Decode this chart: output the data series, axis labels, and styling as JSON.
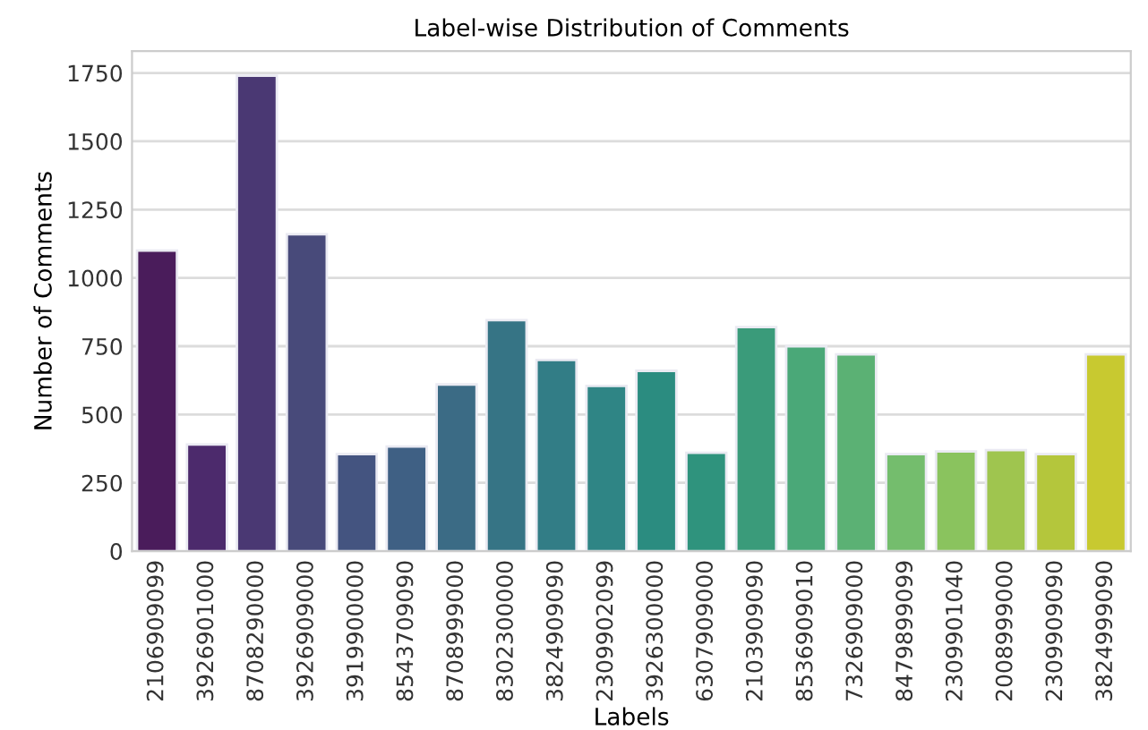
{
  "chart_data": {
    "type": "bar",
    "title": "Label-wise Distribution of Comments",
    "xlabel": "Labels",
    "ylabel": "Number of Comments",
    "categories": [
      "2106909099",
      "3926901000",
      "8708290000",
      "3926909000",
      "3919900000",
      "8543709090",
      "8708999000",
      "8302300000",
      "3824909090",
      "2309902099",
      "3926300000",
      "6307909000",
      "2103909090",
      "8536909010",
      "7326909000",
      "8479899099",
      "2309901040",
      "2008999000",
      "2309909090",
      "3824999090"
    ],
    "values": [
      1100,
      390,
      1740,
      1160,
      355,
      383,
      610,
      845,
      700,
      605,
      660,
      360,
      820,
      750,
      720,
      355,
      365,
      370,
      355,
      720
    ],
    "colors": [
      "#4a1c5b",
      "#4c2a6c",
      "#4a3873",
      "#484a7a",
      "#445480",
      "#3f6084",
      "#3b6b85",
      "#367485",
      "#327d86",
      "#2f8585",
      "#2b8c80",
      "#2f937d",
      "#3a9b7a",
      "#4aa878",
      "#5bb174",
      "#74bd6d",
      "#8ac35e",
      "#9fc54f",
      "#b4c63c",
      "#c8c930"
    ],
    "ylim": [
      0,
      1830
    ],
    "yticks": [
      0,
      250,
      500,
      750,
      1000,
      1250,
      1500,
      1750
    ],
    "grid": "y",
    "legend": false
  }
}
